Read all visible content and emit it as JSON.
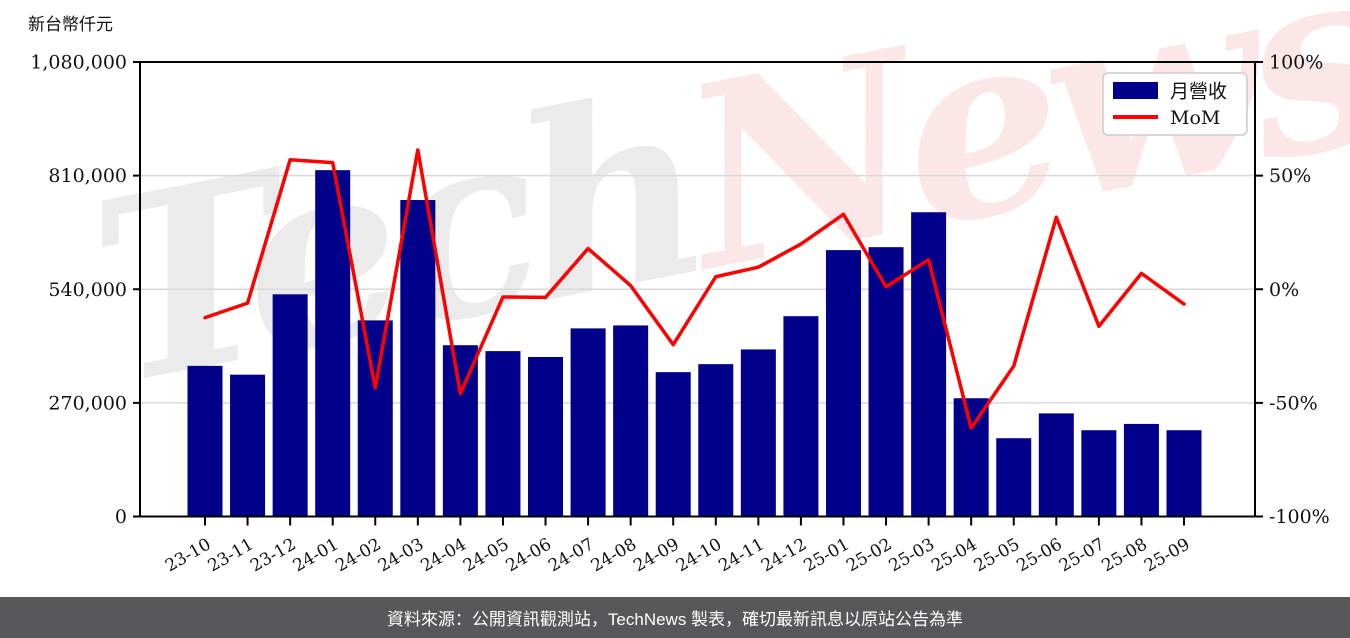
{
  "unit_label": "新台幣仟元",
  "legend": {
    "bar_label": "月營收",
    "line_label": "MoM"
  },
  "footer": {
    "text": "資料來源：公開資訊觀測站，TechNews 製表，確切最新訊息以原站公告為準"
  },
  "watermark": {
    "part1": "Tech",
    "part2": "News"
  },
  "colors": {
    "bar": "#00008B",
    "line": "#FF0000",
    "grid": "#d9d9d9",
    "axis": "#000000",
    "footer_bg": "#58585a",
    "footer_text": "#ffffff"
  },
  "chart_data": {
    "type": "bar",
    "title": "",
    "xlabel": "",
    "ylabel": "新台幣仟元",
    "grid": "horizontal",
    "legend_position": "top-right",
    "categories": [
      "23-10",
      "23-11",
      "23-12",
      "24-01",
      "24-02",
      "24-03",
      "24-04",
      "24-05",
      "24-06",
      "24-07",
      "24-08",
      "24-09",
      "24-10",
      "24-11",
      "24-12",
      "25-01",
      "25-02",
      "25-03",
      "25-04",
      "25-05",
      "25-06",
      "25-07",
      "25-08",
      "25-09"
    ],
    "series": [
      {
        "name": "月營收",
        "type": "bar",
        "axis": "left",
        "values": [
          358000,
          337000,
          528000,
          823000,
          466000,
          752000,
          407000,
          393000,
          379000,
          447000,
          454000,
          343000,
          362000,
          397000,
          476000,
          633000,
          640000,
          723000,
          281000,
          186000,
          245000,
          205000,
          220000,
          205000
        ]
      },
      {
        "name": "MoM",
        "type": "line",
        "axis": "right",
        "values": [
          -12.5,
          -6.1,
          57.0,
          55.7,
          -43.4,
          61.3,
          -45.9,
          -3.4,
          -3.6,
          17.9,
          1.6,
          -24.4,
          5.5,
          9.7,
          19.9,
          33.0,
          1.1,
          13.0,
          -61.1,
          -33.8,
          31.7,
          -16.3,
          7.0,
          -6.5
        ]
      }
    ],
    "left_axis": {
      "range": [
        0,
        1080000
      ],
      "ticks": [
        0,
        270000,
        540000,
        810000,
        1080000
      ]
    },
    "right_axis": {
      "range": [
        -100,
        100
      ],
      "ticks": [
        -100,
        -50,
        0,
        50,
        100
      ],
      "suffix": "%"
    }
  }
}
